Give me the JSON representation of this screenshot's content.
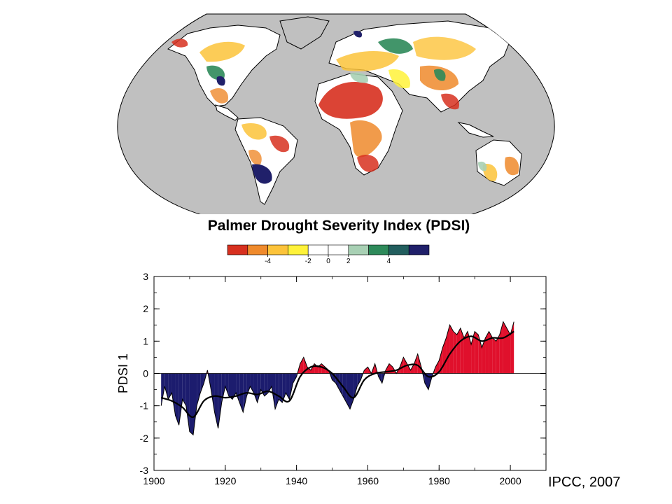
{
  "map": {
    "title": "Palmer Drought Severity Index (PDSI)",
    "colorbar": {
      "colors": [
        "#d7301f",
        "#ef8a2c",
        "#fcc33a",
        "#fff23a",
        "#ffffff",
        "#ffffff",
        "#a8d0b4",
        "#2e8a5a",
        "#225e5e",
        "#20206a"
      ],
      "labels": [
        "-4",
        "-2",
        "0",
        "2",
        "4"
      ]
    },
    "colors": {
      "ocean": "#c0c0c0",
      "land_default": "#ffffff",
      "coast": "#000000"
    }
  },
  "chart_data": {
    "type": "area",
    "xlabel": "",
    "ylabel": "PDSI 1",
    "xlim": [
      1900,
      2010
    ],
    "ylim": [
      -3,
      3
    ],
    "xticks": [
      "1900",
      "1920",
      "1940",
      "1960",
      "1980",
      "2000"
    ],
    "yticks": [
      "-3",
      "-2",
      "-1",
      "0",
      "1",
      "2",
      "3"
    ],
    "colors": {
      "positive": "#e0102c",
      "negative": "#1c1c6e",
      "smooth": "#000000"
    },
    "series": [
      {
        "x": [
          1902,
          1903,
          1904,
          1905,
          1906,
          1907,
          1908,
          1909,
          1910,
          1911,
          1912,
          1913,
          1914,
          1915,
          1916,
          1917,
          1918,
          1919,
          1920,
          1921,
          1922,
          1923,
          1924,
          1925,
          1926,
          1927,
          1928,
          1929,
          1930,
          1931,
          1932,
          1933,
          1934,
          1935,
          1936,
          1937,
          1938,
          1939,
          1940,
          1941,
          1942,
          1943,
          1944,
          1945,
          1946,
          1947,
          1948,
          1949,
          1950,
          1951,
          1952,
          1953,
          1954,
          1955,
          1956,
          1957,
          1958,
          1959,
          1960,
          1961,
          1962,
          1963,
          1964,
          1965,
          1966,
          1967,
          1968,
          1969,
          1970,
          1971,
          1972,
          1973,
          1974,
          1975,
          1976,
          1977,
          1978,
          1979,
          1980,
          1981,
          1982,
          1983,
          1984,
          1985,
          1986,
          1987,
          1988,
          1989,
          1990,
          1991,
          1992,
          1993,
          1994,
          1995,
          1996,
          1997,
          1998,
          1999,
          2000,
          2001
        ],
        "values": [
          -1.0,
          -0.4,
          -0.8,
          -0.6,
          -1.3,
          -1.6,
          -0.8,
          -1.0,
          -1.8,
          -1.9,
          -1.0,
          -0.6,
          -0.3,
          0.1,
          -0.5,
          -1.2,
          -1.7,
          -0.9,
          -0.4,
          -0.7,
          -0.8,
          -0.6,
          -0.9,
          -1.2,
          -0.7,
          -0.4,
          -0.6,
          -0.9,
          -0.5,
          -0.7,
          -0.6,
          -0.4,
          -1.1,
          -0.8,
          -0.9,
          -0.6,
          -0.8,
          -0.3,
          -0.1,
          0.3,
          0.5,
          0.2,
          0.1,
          0.3,
          0.2,
          0.3,
          0.2,
          0.1,
          -0.2,
          -0.3,
          -0.5,
          -0.7,
          -0.9,
          -1.1,
          -0.8,
          -0.4,
          -0.2,
          0.1,
          0.2,
          0.0,
          0.3,
          -0.1,
          -0.3,
          0.1,
          0.3,
          0.2,
          0.0,
          0.2,
          0.5,
          0.3,
          0.1,
          0.3,
          0.6,
          0.2,
          -0.3,
          -0.5,
          -0.1,
          0.2,
          0.4,
          0.8,
          1.1,
          1.5,
          1.3,
          1.2,
          1.4,
          1.1,
          1.3,
          0.9,
          1.3,
          1.2,
          0.8,
          1.1,
          1.3,
          1.1,
          1.0,
          1.2,
          1.6,
          1.4,
          1.2,
          1.6
        ]
      },
      {
        "name": "",
        "x": [
          1902,
          1905,
          1908,
          1911,
          1914,
          1917,
          1920,
          1923,
          1926,
          1929,
          1932,
          1935,
          1938,
          1941,
          1944,
          1947,
          1950,
          1953,
          1956,
          1959,
          1962,
          1965,
          1968,
          1971,
          1974,
          1977,
          1980,
          1983,
          1986,
          1989,
          1992,
          1995,
          1998,
          2001
        ],
        "values": [
          -0.75,
          -0.85,
          -1.05,
          -1.35,
          -0.85,
          -0.7,
          -0.75,
          -0.7,
          -0.6,
          -0.65,
          -0.55,
          -0.7,
          -0.85,
          -0.1,
          0.2,
          0.2,
          0.0,
          -0.4,
          -0.75,
          -0.2,
          0.0,
          0.05,
          0.1,
          0.25,
          0.25,
          -0.1,
          0.05,
          0.6,
          1.0,
          1.15,
          1.0,
          1.1,
          1.1,
          1.3
        ]
      }
    ]
  },
  "credit": "IPCC, 2007"
}
